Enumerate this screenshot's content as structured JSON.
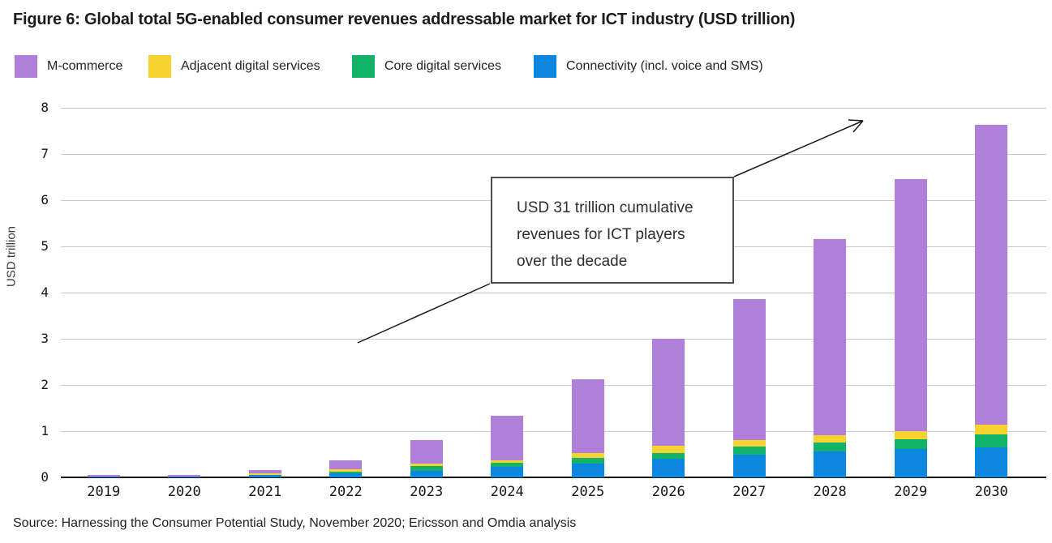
{
  "figure": {
    "title": "Figure 6: Global total 5G-enabled consumer revenues addressable market for ICT industry (USD trillion)",
    "source": "Source: Harnessing the Consumer Potential Study, November 2020; Ericsson and Omdia analysis"
  },
  "legend": [
    {
      "label": "M-commerce",
      "color": "#b07fd9"
    },
    {
      "label": "Adjacent digital services",
      "color": "#f6d32e"
    },
    {
      "label": "Core digital services",
      "color": "#12b268"
    },
    {
      "label": "Connectivity (incl. voice and SMS)",
      "color": "#0b87e0"
    }
  ],
  "annotation": {
    "text": "USD 31 trillion cumulative\nrevenues for ICT players\nover the decade"
  },
  "chart_data": {
    "type": "bar",
    "stacked": true,
    "title": "Figure 6: Global total 5G-enabled consumer revenues addressable market for ICT industry (USD trillion)",
    "xlabel": "",
    "ylabel": "USD trillion",
    "ylim": [
      0,
      8
    ],
    "yticks": [
      0,
      1,
      2,
      3,
      4,
      5,
      6,
      7,
      8
    ],
    "grid": "horizontal",
    "legend_position": "top",
    "categories": [
      "2019",
      "2020",
      "2021",
      "2022",
      "2023",
      "2024",
      "2025",
      "2026",
      "2027",
      "2028",
      "2029",
      "2030"
    ],
    "stack_order": "bottom-to-top",
    "series": [
      {
        "name": "Connectivity (incl. voice and SMS)",
        "color": "#0b87e0",
        "values": [
          0.01,
          0.01,
          0.05,
          0.09,
          0.14,
          0.23,
          0.3,
          0.41,
          0.5,
          0.57,
          0.61,
          0.65
        ]
      },
      {
        "name": "Core digital services",
        "color": "#12b268",
        "values": [
          0.0,
          0.0,
          0.01,
          0.03,
          0.1,
          0.09,
          0.12,
          0.12,
          0.16,
          0.18,
          0.22,
          0.28
        ]
      },
      {
        "name": "Adjacent digital services",
        "color": "#f6d32e",
        "values": [
          0.01,
          0.01,
          0.03,
          0.06,
          0.05,
          0.05,
          0.1,
          0.16,
          0.15,
          0.16,
          0.17,
          0.21
        ]
      },
      {
        "name": "M-commerce",
        "color": "#b07fd9",
        "values": [
          0.03,
          0.03,
          0.07,
          0.19,
          0.52,
          0.96,
          1.6,
          2.31,
          3.05,
          4.24,
          5.45,
          6.49
        ]
      }
    ],
    "totals": [
      0.05,
      0.05,
      0.16,
      0.37,
      0.81,
      1.33,
      2.12,
      3.0,
      3.86,
      5.15,
      6.45,
      7.63
    ],
    "annotation": "USD 31 trillion cumulative revenues for ICT players over the decade"
  }
}
